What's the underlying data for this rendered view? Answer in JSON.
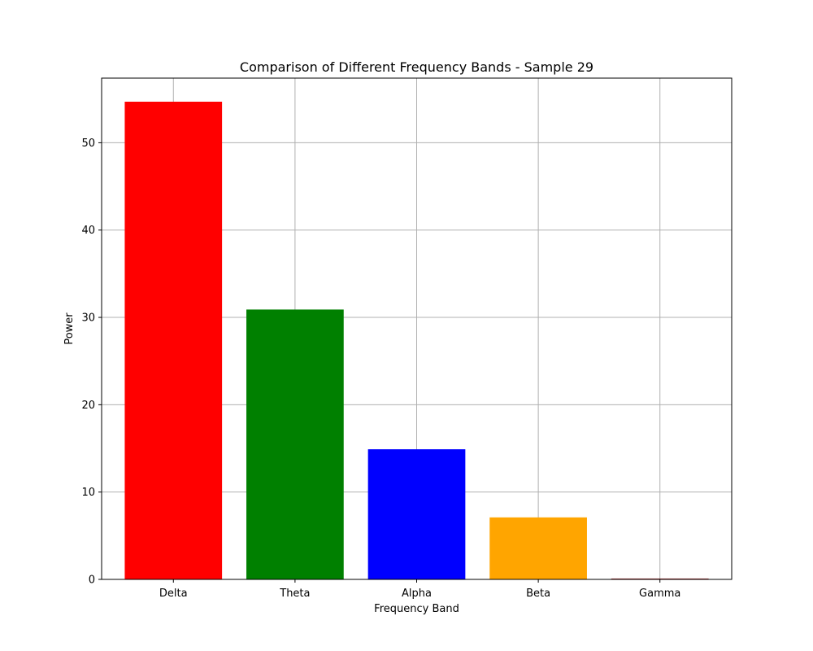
{
  "chart_data": {
    "type": "bar",
    "title": "Comparison of Different Frequency Bands - Sample 29",
    "xlabel": "Frequency Band",
    "ylabel": "Power",
    "categories": [
      "Delta",
      "Theta",
      "Alpha",
      "Beta",
      "Gamma"
    ],
    "values": [
      54.7,
      30.9,
      14.9,
      7.1,
      0.1
    ],
    "colors": [
      "#ff0000",
      "#008000",
      "#0000ff",
      "#ffa500",
      "#a52a2a"
    ],
    "ylim": [
      0,
      57.4
    ],
    "yticks": [
      0,
      10,
      20,
      30,
      40,
      50
    ],
    "grid": true,
    "legend": "none"
  }
}
